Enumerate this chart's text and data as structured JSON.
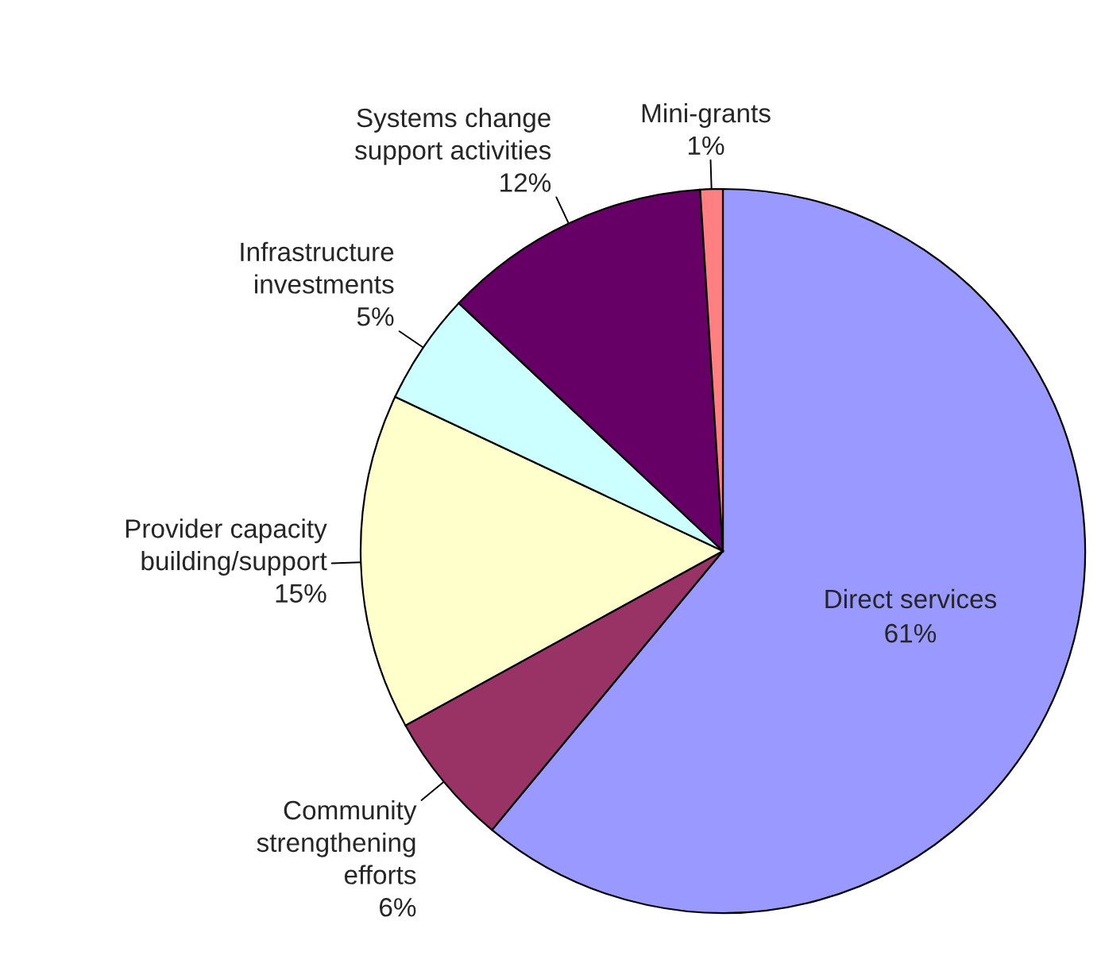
{
  "chart_data": {
    "type": "pie",
    "categories": [
      "Direct services",
      "Community\nstrengthening\nefforts",
      "Provider capacity\nbuilding/support",
      "Infrastructure\ninvestments",
      "Systems change\nsupport activities",
      "Mini-grants"
    ],
    "values": [
      61,
      6,
      15,
      5,
      12,
      1
    ],
    "value_labels": [
      "61%",
      "6%",
      "15%",
      "5%",
      "12%",
      "1%"
    ],
    "colors": [
      "#9999ff",
      "#993366",
      "#ffffcc",
      "#ccffff",
      "#660066",
      "#ff8080"
    ],
    "legend": false
  }
}
